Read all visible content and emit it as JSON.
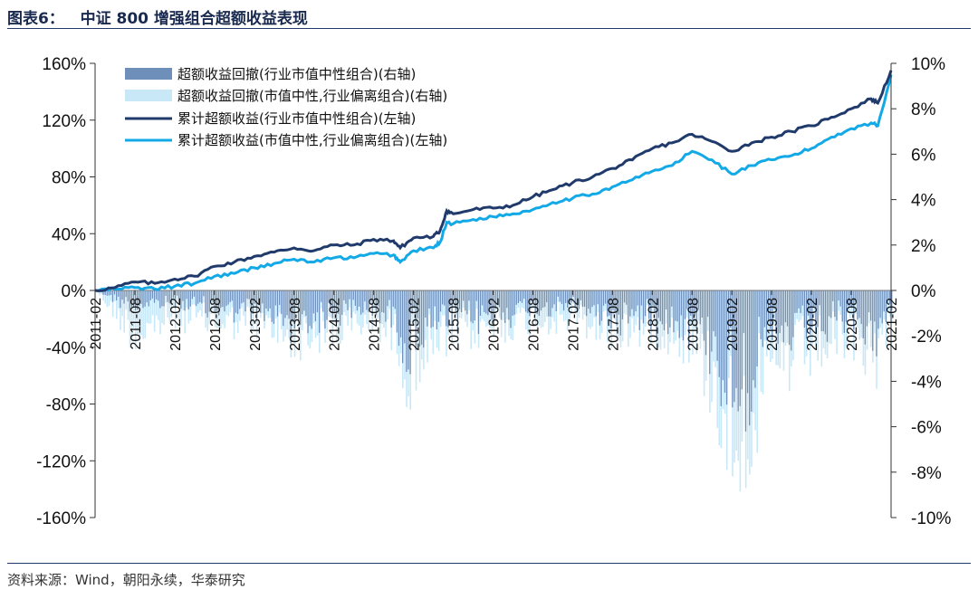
{
  "figure": {
    "title": "图表6：   中证 800 增强组合超额收益表现",
    "source": "资料来源：Wind，朝阳永续，华泰研究"
  },
  "chart_data": {
    "type": "bar+line",
    "x_ticks": [
      "2011-02",
      "2011-08",
      "2012-02",
      "2012-08",
      "2013-02",
      "2013-08",
      "2014-02",
      "2014-08",
      "2015-02",
      "2015-08",
      "2016-02",
      "2016-08",
      "2017-02",
      "2017-08",
      "2018-02",
      "2018-08",
      "2019-02",
      "2019-08",
      "2020-02",
      "2020-08",
      "2021-02"
    ],
    "y_left": {
      "min": -160,
      "max": 160,
      "ticks": [
        160,
        120,
        80,
        40,
        0,
        -40,
        -80,
        -120,
        -160
      ],
      "unit": "%"
    },
    "y_right": {
      "min": -10,
      "max": 10,
      "ticks": [
        10,
        8,
        6,
        4,
        2,
        0,
        -2,
        -4,
        -6,
        -8,
        -10
      ],
      "unit": "%"
    },
    "legend": {
      "placement": "top-left",
      "entries": [
        "超额收益回撤(行业市值中性组合)(右轴)",
        "超额收益回撤(市值中性,行业偏离组合)(右轴)",
        "累计超额收益(行业市值中性组合)(左轴)",
        "累计超额收益(市值中性,行业偏离组合)(左轴)"
      ]
    },
    "colors": {
      "dd_neutral": "#6f8fbb",
      "dd_deviation": "#c8e8f8",
      "cum_neutral": "#1f3a6b",
      "cum_deviation": "#12a9e6"
    },
    "series": [
      {
        "name": "累计超额收益(行业市值中性组合)(左轴)",
        "axis": "left",
        "points": [
          [
            "2011-02",
            0
          ],
          [
            "2011-05",
            2
          ],
          [
            "2011-08",
            6
          ],
          [
            "2011-11",
            5
          ],
          [
            "2012-02",
            8
          ],
          [
            "2012-05",
            10
          ],
          [
            "2012-08",
            17
          ],
          [
            "2012-11",
            20
          ],
          [
            "2013-02",
            24
          ],
          [
            "2013-05",
            27
          ],
          [
            "2013-08",
            30
          ],
          [
            "2013-11",
            28
          ],
          [
            "2014-02",
            32
          ],
          [
            "2014-05",
            32
          ],
          [
            "2014-08",
            36
          ],
          [
            "2014-11",
            35
          ],
          [
            "2014-12",
            30
          ],
          [
            "2015-02",
            37
          ],
          [
            "2015-05",
            38
          ],
          [
            "2015-06",
            42
          ],
          [
            "2015-07",
            56
          ],
          [
            "2015-08",
            54
          ],
          [
            "2015-11",
            57
          ],
          [
            "2016-02",
            58
          ],
          [
            "2016-05",
            60
          ],
          [
            "2016-08",
            66
          ],
          [
            "2016-11",
            71
          ],
          [
            "2017-02",
            76
          ],
          [
            "2017-05",
            80
          ],
          [
            "2017-08",
            86
          ],
          [
            "2017-11",
            92
          ],
          [
            "2018-02",
            100
          ],
          [
            "2018-05",
            104
          ],
          [
            "2018-08",
            110
          ],
          [
            "2018-11",
            105
          ],
          [
            "2019-02",
            98
          ],
          [
            "2019-05",
            104
          ],
          [
            "2019-08",
            108
          ],
          [
            "2019-11",
            112
          ],
          [
            "2020-02",
            116
          ],
          [
            "2020-05",
            122
          ],
          [
            "2020-08",
            128
          ],
          [
            "2020-11",
            135
          ],
          [
            "2020-12",
            132
          ],
          [
            "2021-02",
            155
          ]
        ]
      },
      {
        "name": "累计超额收益(市值中性,行业偏离组合)(左轴)",
        "axis": "left",
        "points": [
          [
            "2011-02",
            0
          ],
          [
            "2011-05",
            1
          ],
          [
            "2011-08",
            2
          ],
          [
            "2011-11",
            1
          ],
          [
            "2012-02",
            3
          ],
          [
            "2012-05",
            5
          ],
          [
            "2012-08",
            10
          ],
          [
            "2012-11",
            12
          ],
          [
            "2013-02",
            16
          ],
          [
            "2013-05",
            19
          ],
          [
            "2013-08",
            22
          ],
          [
            "2013-11",
            20
          ],
          [
            "2014-02",
            23
          ],
          [
            "2014-05",
            23
          ],
          [
            "2014-08",
            26
          ],
          [
            "2014-11",
            25
          ],
          [
            "2014-12",
            20
          ],
          [
            "2015-02",
            28
          ],
          [
            "2015-05",
            30
          ],
          [
            "2015-06",
            34
          ],
          [
            "2015-07",
            48
          ],
          [
            "2015-08",
            47
          ],
          [
            "2015-11",
            50
          ],
          [
            "2016-02",
            52
          ],
          [
            "2016-05",
            54
          ],
          [
            "2016-08",
            57
          ],
          [
            "2016-11",
            62
          ],
          [
            "2017-02",
            65
          ],
          [
            "2017-05",
            68
          ],
          [
            "2017-08",
            73
          ],
          [
            "2017-11",
            78
          ],
          [
            "2018-02",
            84
          ],
          [
            "2018-05",
            88
          ],
          [
            "2018-08",
            98
          ],
          [
            "2018-11",
            92
          ],
          [
            "2019-02",
            82
          ],
          [
            "2019-05",
            88
          ],
          [
            "2019-08",
            92
          ],
          [
            "2019-11",
            95
          ],
          [
            "2020-02",
            100
          ],
          [
            "2020-05",
            108
          ],
          [
            "2020-08",
            114
          ],
          [
            "2020-11",
            118
          ],
          [
            "2020-12",
            116
          ],
          [
            "2021-02",
            152
          ]
        ]
      },
      {
        "name": "超额收益回撤(行业市值中性组合)(右轴)",
        "axis": "right",
        "style": "bars",
        "envelope": [
          [
            "2011-02",
            0
          ],
          [
            "2011-08",
            -1.4
          ],
          [
            "2012-02",
            -1.0
          ],
          [
            "2012-08",
            -1.5
          ],
          [
            "2013-02",
            -1.8
          ],
          [
            "2013-08",
            -2.6
          ],
          [
            "2014-02",
            -2.0
          ],
          [
            "2014-08",
            -1.4
          ],
          [
            "2014-12",
            -2.8
          ],
          [
            "2015-01",
            -6.2
          ],
          [
            "2015-02",
            -3.5
          ],
          [
            "2015-08",
            -2.6
          ],
          [
            "2016-02",
            -2.0
          ],
          [
            "2016-08",
            -1.5
          ],
          [
            "2017-02",
            -1.4
          ],
          [
            "2017-08",
            -2.2
          ],
          [
            "2018-02",
            -2.0
          ],
          [
            "2018-08",
            -2.8
          ],
          [
            "2018-11",
            -4.5
          ],
          [
            "2019-02",
            -8.5
          ],
          [
            "2019-05",
            -6.5
          ],
          [
            "2019-08",
            -4.5
          ],
          [
            "2020-02",
            -3.2
          ],
          [
            "2020-08",
            -2.5
          ],
          [
            "2020-12",
            -4.0
          ],
          [
            "2021-02",
            -1.0
          ]
        ]
      },
      {
        "name": "超额收益回撤(市值中性,行业偏离组合)(右轴)",
        "axis": "right",
        "style": "bars",
        "envelope": [
          [
            "2011-02",
            0
          ],
          [
            "2011-08",
            -3.0
          ],
          [
            "2012-02",
            -1.8
          ],
          [
            "2012-08",
            -2.2
          ],
          [
            "2013-02",
            -2.2
          ],
          [
            "2013-08",
            -3.2
          ],
          [
            "2014-02",
            -2.8
          ],
          [
            "2014-08",
            -2.0
          ],
          [
            "2014-12",
            -3.5
          ],
          [
            "2015-01",
            -6.5
          ],
          [
            "2015-02",
            -4.5
          ],
          [
            "2015-08",
            -3.0
          ],
          [
            "2016-02",
            -2.5
          ],
          [
            "2016-08",
            -2.0
          ],
          [
            "2017-02",
            -2.0
          ],
          [
            "2017-08",
            -2.8
          ],
          [
            "2018-02",
            -2.5
          ],
          [
            "2018-08",
            -3.5
          ],
          [
            "2018-11",
            -6.0
          ],
          [
            "2019-02",
            -9.7
          ],
          [
            "2019-05",
            -8.5
          ],
          [
            "2019-08",
            -5.5
          ],
          [
            "2020-02",
            -4.0
          ],
          [
            "2020-08",
            -3.2
          ],
          [
            "2020-12",
            -4.5
          ],
          [
            "2021-02",
            -1.5
          ]
        ]
      }
    ]
  }
}
